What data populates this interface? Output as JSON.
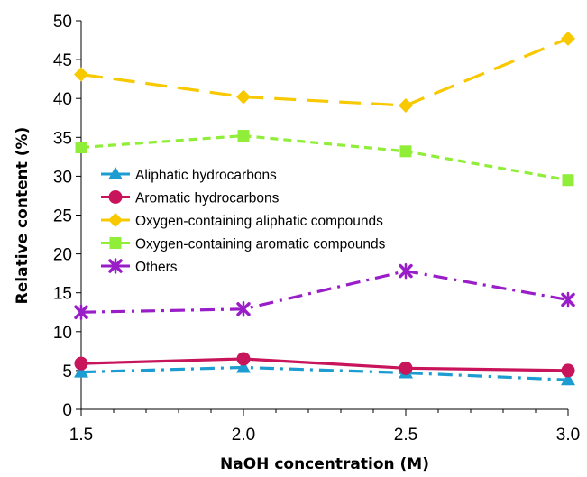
{
  "chart_data": {
    "type": "line",
    "xlabel": "NaOH concentration (M)",
    "ylabel": "Relative content (%)",
    "x": [
      1.5,
      2.0,
      2.5,
      3.0
    ],
    "x_tick_labels": [
      "1.5",
      "2.0",
      "2.5",
      "3.0"
    ],
    "xlim": [
      1.5,
      3.0
    ],
    "y_ticks": [
      0,
      5,
      10,
      15,
      20,
      25,
      30,
      35,
      40,
      45,
      50
    ],
    "y_tick_labels": [
      "0",
      "5",
      "10",
      "15",
      "20",
      "25",
      "30",
      "35",
      "40",
      "45",
      "50"
    ],
    "ylim": [
      0,
      50
    ],
    "grid": false,
    "legend_position": "center-left",
    "series": [
      {
        "name": "Aliphatic hydrocarbons",
        "values": [
          4.8,
          5.4,
          4.7,
          3.8
        ],
        "color": "#1c9cd0",
        "marker": "triangle",
        "dash": "dash-dot"
      },
      {
        "name": "Aromatic hydrocarbons",
        "values": [
          5.9,
          6.5,
          5.3,
          5.0
        ],
        "color": "#c8145a",
        "marker": "circle",
        "dash": "solid"
      },
      {
        "name": "Oxygen-containing aliphatic compounds",
        "values": [
          43.1,
          40.2,
          39.1,
          47.7
        ],
        "color": "#f8c800",
        "marker": "diamond",
        "dash": "long-dash"
      },
      {
        "name": "Oxygen-containing aromatic compounds",
        "values": [
          33.7,
          35.2,
          33.2,
          29.5
        ],
        "color": "#90ee38",
        "marker": "square",
        "dash": "short-dash"
      },
      {
        "name": "Others",
        "values": [
          12.5,
          12.9,
          17.8,
          14.1
        ],
        "color": "#9a1ec8",
        "marker": "x",
        "dash": "dash-dot"
      }
    ]
  }
}
